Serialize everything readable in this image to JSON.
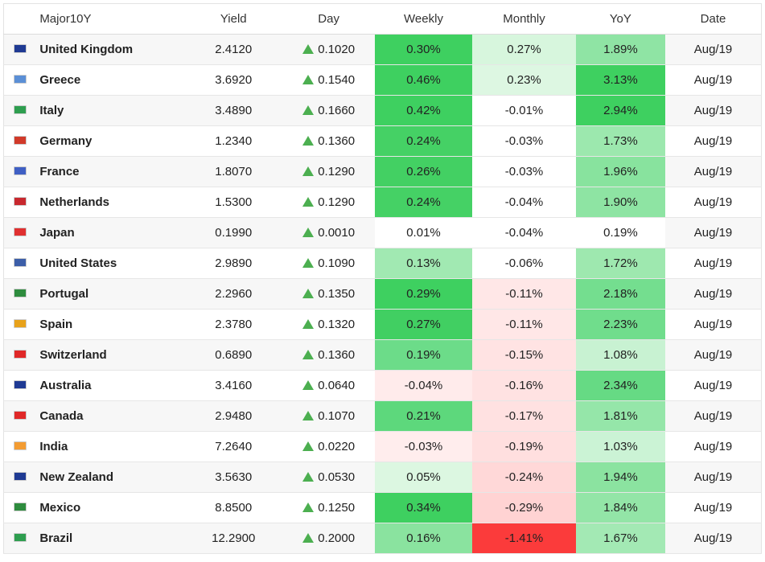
{
  "header": {
    "col_country": "Major10Y",
    "col_yield": "Yield",
    "col_day": "Day",
    "col_weekly": "Weekly",
    "col_monthly": "Monthly",
    "col_yoy": "YoY",
    "col_date": "Date"
  },
  "rows": [
    {
      "country": "United Kingdom",
      "yield": "2.4120",
      "day": "0.1020",
      "weekly": "0.30%",
      "monthly": "0.27%",
      "yoy": "1.89%",
      "date": "Aug/19",
      "flag_color": "#1f3a93",
      "weekly_bg": "#3ed060",
      "monthly_bg": "#d7f6dd",
      "yoy_bg": "#8fe4a4"
    },
    {
      "country": "Greece",
      "yield": "3.6920",
      "day": "0.1540",
      "weekly": "0.46%",
      "monthly": "0.23%",
      "yoy": "3.13%",
      "date": "Aug/19",
      "flag_color": "#5b8fd6",
      "weekly_bg": "#3ed060",
      "monthly_bg": "#ddf7e2",
      "yoy_bg": "#3ed060"
    },
    {
      "country": "Italy",
      "yield": "3.4890",
      "day": "0.1660",
      "weekly": "0.42%",
      "monthly": "-0.01%",
      "yoy": "2.94%",
      "date": "Aug/19",
      "flag_color": "#2e9e4f",
      "weekly_bg": "#3ed060",
      "monthly_bg": "#ffffff",
      "yoy_bg": "#3ed060"
    },
    {
      "country": "Germany",
      "yield": "1.2340",
      "day": "0.1360",
      "weekly": "0.24%",
      "monthly": "-0.03%",
      "yoy": "1.73%",
      "date": "Aug/19",
      "flag_color": "#d13a2a",
      "weekly_bg": "#45d165",
      "monthly_bg": "#ffffff",
      "yoy_bg": "#9ce8ae"
    },
    {
      "country": "France",
      "yield": "1.8070",
      "day": "0.1290",
      "weekly": "0.26%",
      "monthly": "-0.03%",
      "yoy": "1.96%",
      "date": "Aug/19",
      "flag_color": "#3f5fc4",
      "weekly_bg": "#43d063",
      "monthly_bg": "#ffffff",
      "yoy_bg": "#88e39e"
    },
    {
      "country": "Netherlands",
      "yield": "1.5300",
      "day": "0.1290",
      "weekly": "0.24%",
      "monthly": "-0.04%",
      "yoy": "1.90%",
      "date": "Aug/19",
      "flag_color": "#c8282e",
      "weekly_bg": "#45d165",
      "monthly_bg": "#ffffff",
      "yoy_bg": "#8ee4a3"
    },
    {
      "country": "Japan",
      "yield": "0.1990",
      "day": "0.0010",
      "weekly": "0.01%",
      "monthly": "-0.04%",
      "yoy": "0.19%",
      "date": "Aug/19",
      "flag_color": "#e03030",
      "weekly_bg": "#ffffff",
      "monthly_bg": "#ffffff",
      "yoy_bg": "#ffffff"
    },
    {
      "country": "United States",
      "yield": "2.9890",
      "day": "0.1090",
      "weekly": "0.13%",
      "monthly": "-0.06%",
      "yoy": "1.72%",
      "date": "Aug/19",
      "flag_color": "#3c5ea8",
      "weekly_bg": "#a1e9b2",
      "monthly_bg": "#ffffff",
      "yoy_bg": "#9ee8af"
    },
    {
      "country": "Portugal",
      "yield": "2.2960",
      "day": "0.1350",
      "weekly": "0.29%",
      "monthly": "-0.11%",
      "yoy": "2.18%",
      "date": "Aug/19",
      "flag_color": "#2e8c3e",
      "weekly_bg": "#3ed060",
      "monthly_bg": "#ffe7e7",
      "yoy_bg": "#74de8f"
    },
    {
      "country": "Spain",
      "yield": "2.3780",
      "day": "0.1320",
      "weekly": "0.27%",
      "monthly": "-0.11%",
      "yoy": "2.23%",
      "date": "Aug/19",
      "flag_color": "#e8a21a",
      "weekly_bg": "#41cf62",
      "monthly_bg": "#ffe7e7",
      "yoy_bg": "#70dd8c"
    },
    {
      "country": "Switzerland",
      "yield": "0.6890",
      "day": "0.1360",
      "weekly": "0.19%",
      "monthly": "-0.15%",
      "yoy": "1.08%",
      "date": "Aug/19",
      "flag_color": "#e02828",
      "weekly_bg": "#6cdc89",
      "monthly_bg": "#ffe3e3",
      "yoy_bg": "#c8f2d2"
    },
    {
      "country": "Australia",
      "yield": "3.4160",
      "day": "0.0640",
      "weekly": "-0.04%",
      "monthly": "-0.16%",
      "yoy": "2.34%",
      "date": "Aug/19",
      "flag_color": "#1f3a93",
      "weekly_bg": "#ffebeb",
      "monthly_bg": "#ffe2e2",
      "yoy_bg": "#66da84"
    },
    {
      "country": "Canada",
      "yield": "2.9480",
      "day": "0.1070",
      "weekly": "0.21%",
      "monthly": "-0.17%",
      "yoy": "1.81%",
      "date": "Aug/19",
      "flag_color": "#e02828",
      "weekly_bg": "#5dd87c",
      "monthly_bg": "#ffe1e1",
      "yoy_bg": "#95e6a9"
    },
    {
      "country": "India",
      "yield": "7.2640",
      "day": "0.0220",
      "weekly": "-0.03%",
      "monthly": "-0.19%",
      "yoy": "1.03%",
      "date": "Aug/19",
      "flag_color": "#f39c32",
      "weekly_bg": "#ffeded",
      "monthly_bg": "#ffdfdf",
      "yoy_bg": "#cbf3d5"
    },
    {
      "country": "New Zealand",
      "yield": "3.5630",
      "day": "0.0530",
      "weekly": "0.05%",
      "monthly": "-0.24%",
      "yoy": "1.94%",
      "date": "Aug/19",
      "flag_color": "#1f3a93",
      "weekly_bg": "#dcf7e1",
      "monthly_bg": "#ffd8d8",
      "yoy_bg": "#8be3a0"
    },
    {
      "country": "Mexico",
      "yield": "8.8500",
      "day": "0.1250",
      "weekly": "0.34%",
      "monthly": "-0.29%",
      "yoy": "1.84%",
      "date": "Aug/19",
      "flag_color": "#2e8c3e",
      "weekly_bg": "#3ed060",
      "monthly_bg": "#ffd3d3",
      "yoy_bg": "#93e5a7"
    },
    {
      "country": "Brazil",
      "yield": "12.2900",
      "day": "0.2000",
      "weekly": "0.16%",
      "monthly": "-1.41%",
      "yoy": "1.67%",
      "date": "Aug/19",
      "flag_color": "#2e9e4f",
      "weekly_bg": "#8ae39f",
      "monthly_bg": "#fb3b3b",
      "yoy_bg": "#a3e9b4"
    }
  ]
}
